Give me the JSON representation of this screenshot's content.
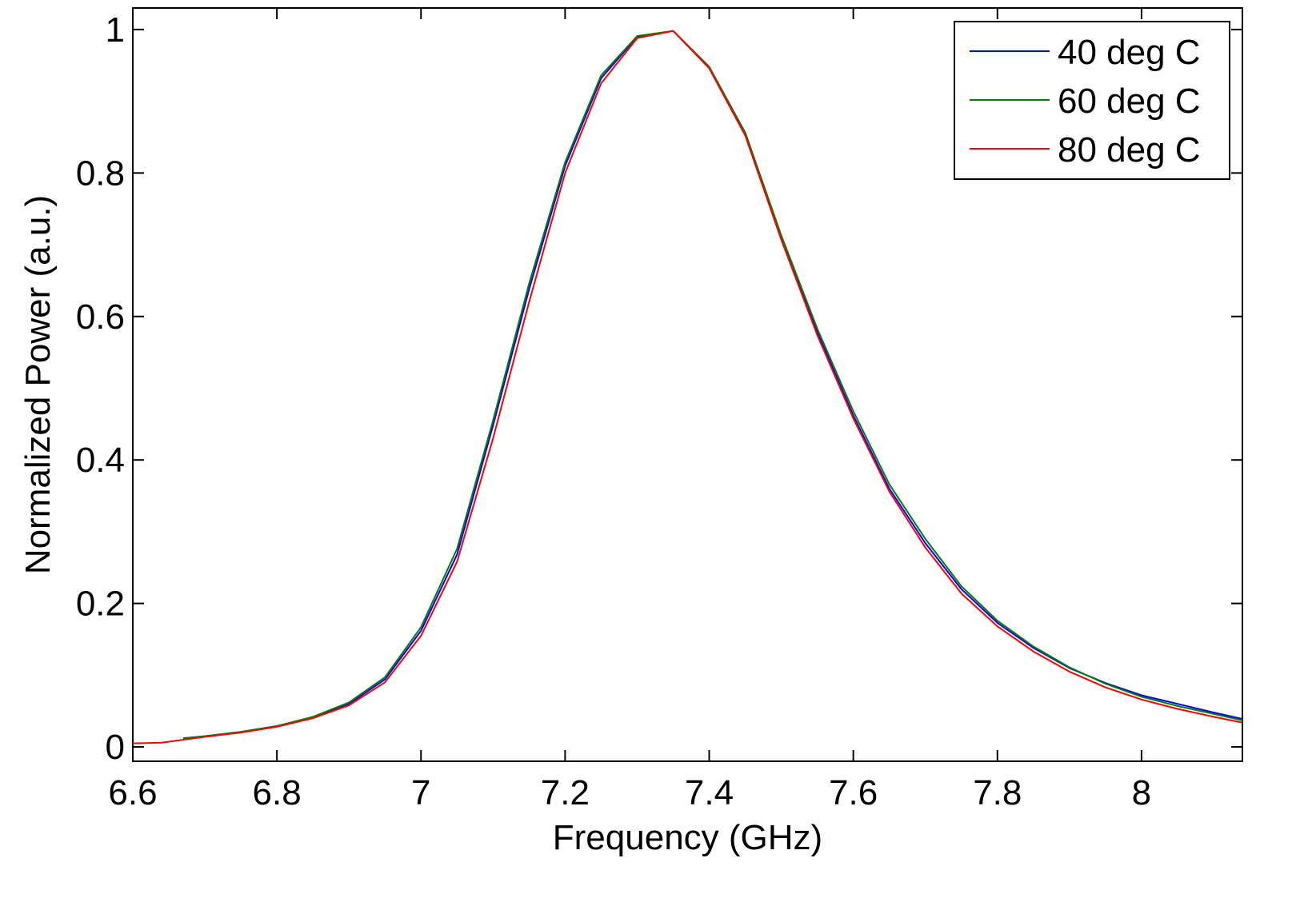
{
  "chart_data": {
    "type": "line",
    "title": "",
    "xlabel": "Frequency (GHz)",
    "ylabel": "Normalized Power (a.u.)",
    "xlim": [
      6.6,
      8.14
    ],
    "ylim": [
      -0.02,
      1.03
    ],
    "xticks": [
      6.6,
      6.8,
      7.0,
      7.2,
      7.4,
      7.6,
      7.8,
      8.0
    ],
    "xtick_labels": [
      "6.6",
      "6.8",
      "7",
      "7.2",
      "7.4",
      "7.6",
      "7.8",
      "8"
    ],
    "yticks": [
      0,
      0.2,
      0.4,
      0.6,
      0.8,
      1.0
    ],
    "ytick_labels": [
      "0",
      "0.2",
      "0.4",
      "0.6",
      "0.8",
      "1"
    ],
    "grid": false,
    "legend_position": "top-right",
    "series": [
      {
        "name": "40 deg C",
        "color": "#0000ff",
        "x": [
          6.67,
          6.7,
          6.75,
          6.8,
          6.85,
          6.9,
          6.95,
          7.0,
          7.05,
          7.1,
          7.15,
          7.2,
          7.25,
          7.3,
          7.35,
          7.4,
          7.45,
          7.5,
          7.55,
          7.6,
          7.65,
          7.7,
          7.75,
          7.8,
          7.85,
          7.9,
          7.95,
          8.0,
          8.05,
          8.1,
          8.14
        ],
        "y": [
          0.012,
          0.015,
          0.021,
          0.029,
          0.041,
          0.06,
          0.094,
          0.162,
          0.268,
          0.448,
          0.638,
          0.81,
          0.932,
          0.99,
          0.998,
          0.948,
          0.856,
          0.71,
          0.578,
          0.462,
          0.36,
          0.284,
          0.22,
          0.173,
          0.138,
          0.11,
          0.089,
          0.072,
          0.06,
          0.048,
          0.039
        ]
      },
      {
        "name": "60 deg C",
        "color": "#008000",
        "x": [
          6.67,
          6.7,
          6.75,
          6.8,
          6.85,
          6.9,
          6.95,
          7.0,
          7.05,
          7.1,
          7.15,
          7.2,
          7.25,
          7.3,
          7.35,
          7.4,
          7.45,
          7.5,
          7.55,
          7.6,
          7.65,
          7.7,
          7.75,
          7.8,
          7.85,
          7.9,
          7.95,
          8.0,
          8.05,
          8.1,
          8.14
        ],
        "y": [
          0.012,
          0.015,
          0.021,
          0.029,
          0.042,
          0.062,
          0.097,
          0.167,
          0.276,
          0.455,
          0.646,
          0.815,
          0.936,
          0.991,
          0.998,
          0.948,
          0.856,
          0.713,
          0.583,
          0.468,
          0.366,
          0.29,
          0.224,
          0.176,
          0.14,
          0.111,
          0.088,
          0.07,
          0.057,
          0.046,
          0.037
        ]
      },
      {
        "name": "80 deg C",
        "color": "#ff0000",
        "x": [
          6.6,
          6.64,
          6.67,
          6.7,
          6.75,
          6.8,
          6.85,
          6.9,
          6.95,
          7.0,
          7.05,
          7.1,
          7.15,
          7.2,
          7.25,
          7.3,
          7.35,
          7.4,
          7.45,
          7.5,
          7.55,
          7.6,
          7.65,
          7.7,
          7.75,
          7.8,
          7.85,
          7.9,
          7.95,
          8.0,
          8.05,
          8.1,
          8.14
        ],
        "y": [
          0.005,
          0.006,
          0.01,
          0.014,
          0.02,
          0.028,
          0.04,
          0.058,
          0.09,
          0.155,
          0.258,
          0.43,
          0.62,
          0.8,
          0.925,
          0.988,
          0.998,
          0.946,
          0.852,
          0.707,
          0.574,
          0.458,
          0.356,
          0.278,
          0.214,
          0.168,
          0.133,
          0.105,
          0.083,
          0.066,
          0.053,
          0.042,
          0.034
        ]
      }
    ]
  }
}
